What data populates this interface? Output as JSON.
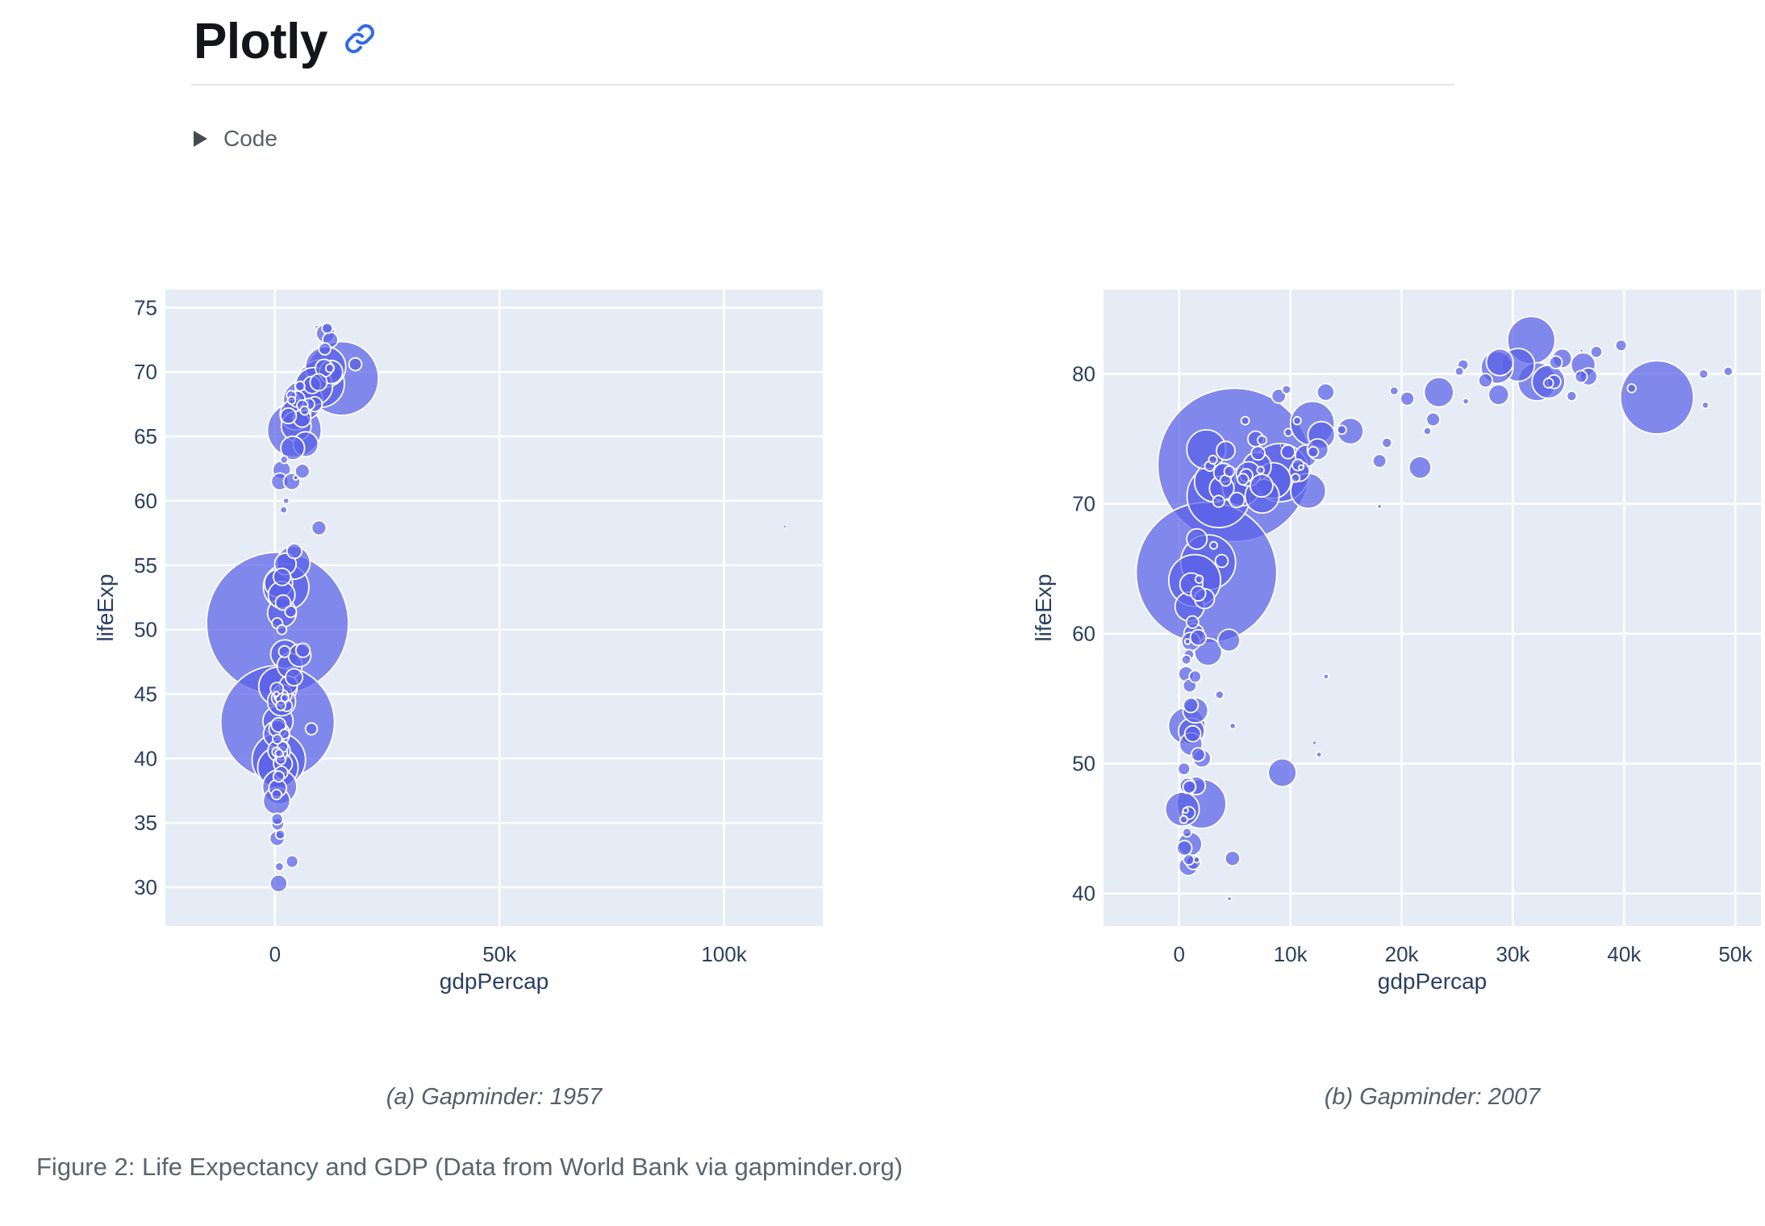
{
  "header": {
    "title": "Plotly",
    "code_label": "Code"
  },
  "figure": {
    "caption": "Figure 2: Life Expectancy and GDP (Data from World Bank via gapminder.org)",
    "subfigures": [
      {
        "caption": "(a) Gapminder: 1957"
      },
      {
        "caption": "(b) Gapminder: 2007"
      }
    ]
  },
  "colors": {
    "accent_link": "#2e6ae8",
    "plot_bg": "#E5ECF6",
    "grid": "#FFFFFF",
    "bubble_fill": "#5A61E6",
    "bubble_stroke": "#FFFFFF",
    "axis_text": "#2a3f5f",
    "title_text": "#14151b",
    "muted_text": "#59606a",
    "caption_text": "#555e68"
  },
  "chart_data": [
    {
      "type": "scatter",
      "title": "Gapminder: 1957",
      "xlabel": "gdpPercap",
      "ylabel": "lifeExp",
      "xlim": [
        -24400,
        122000
      ],
      "ylim": [
        27.0,
        76.4
      ],
      "x_ticks": [
        {
          "v": 0,
          "label": "0"
        },
        {
          "v": 50000,
          "label": "50k"
        },
        {
          "v": 100000,
          "label": "100k"
        }
      ],
      "y_ticks": [
        {
          "v": 30,
          "label": "30"
        },
        {
          "v": 35,
          "label": "35"
        },
        {
          "v": 40,
          "label": "40"
        },
        {
          "v": 45,
          "label": "45"
        },
        {
          "v": 50,
          "label": "50"
        },
        {
          "v": 55,
          "label": "55"
        },
        {
          "v": 60,
          "label": "60"
        },
        {
          "v": 65,
          "label": "65"
        },
        {
          "v": 70,
          "label": "70"
        },
        {
          "v": 75,
          "label": "75"
        }
      ],
      "grid": true,
      "legend": "none",
      "size_max_r": 88,
      "points_format": [
        "gdpPercap",
        "lifeExp",
        "pop_millions"
      ],
      "points": [
        [
          821,
          30.3,
          9.2
        ],
        [
          1942,
          59.3,
          1.5
        ],
        [
          3014,
          45.7,
          10.3
        ],
        [
          3828,
          32.0,
          4.6
        ],
        [
          6857,
          64.4,
          19.6
        ],
        [
          10950,
          70.3,
          9.7
        ],
        [
          8843,
          67.5,
          7.0
        ],
        [
          662,
          39.3,
          51.4
        ],
        [
          9715,
          69.2,
          9.0
        ],
        [
          960,
          40.4,
          1.9
        ],
        [
          2128,
          41.9,
          3.0
        ],
        [
          2487,
          53.3,
          65.5
        ],
        [
          3009,
          66.6,
          7.7
        ],
        [
          617,
          34.9,
          4.7
        ],
        [
          380,
          40.5,
          2.7
        ],
        [
          434,
          45.4,
          5.3
        ],
        [
          1313,
          40.4,
          5.4
        ],
        [
          12490,
          70.0,
          17.0
        ],
        [
          1308,
          39.9,
          2.9
        ],
        [
          4316,
          56.1,
          7.0
        ],
        [
          576,
          50.5,
          637.4
        ],
        [
          2324,
          55.1,
          14.5
        ],
        [
          906,
          40.6,
          15.6
        ],
        [
          2487,
          60.0,
          1.1
        ],
        [
          6093,
          62.3,
          6.6
        ],
        [
          8256,
          69.0,
          9.5
        ],
        [
          11100,
          71.8,
          4.5
        ],
        [
          1544,
          50.0,
          2.9
        ],
        [
          3522,
          51.4,
          4.1
        ],
        [
          1459,
          44.4,
          25.0
        ],
        [
          379,
          36.7,
          22.8
        ],
        [
          7545,
          67.5,
          4.3
        ],
        [
          8663,
          68.9,
          44.3
        ],
        [
          10188,
          69.1,
          71.0
        ],
        [
          1490,
          44.8,
          6.4
        ],
        [
          4916,
          67.9,
          8.1
        ],
        [
          2617,
          44.1,
          4.0
        ],
        [
          1726,
          40.9,
          3.5
        ],
        [
          2220,
          44.7,
          1.8
        ],
        [
          3629,
          68.2,
          2.7
        ],
        [
          6040,
          66.4,
          9.8
        ],
        [
          9244,
          73.5,
          0.17
        ],
        [
          590,
          42.8,
          409.0
        ],
        [
          859,
          39.9,
          90.1
        ],
        [
          3290,
          47.2,
          19.8
        ],
        [
          6229,
          48.4,
          6.3
        ],
        [
          5599,
          68.9,
          2.9
        ],
        [
          3698,
          67.8,
          1.9
        ],
        [
          6249,
          67.8,
          49.2
        ],
        [
          4318,
          65.5,
          91.6
        ],
        [
          944,
          44.7,
          7.4
        ],
        [
          1572,
          54.1,
          9.4
        ],
        [
          1488,
          52.7,
          22.6
        ],
        [
          113523,
          58.0,
          0.21
        ],
        [
          344,
          45.0,
          0.8
        ],
        [
          1443,
          38.9,
          5.2
        ],
        [
          380,
          37.2,
          3.2
        ],
        [
          1810,
          52.1,
          7.3
        ],
        [
          490,
          35.3,
          4.2
        ],
        [
          4132,
          55.2,
          35.0
        ],
        [
          1695,
          45.0,
          11.4
        ],
        [
          495,
          33.8,
          7.0
        ],
        [
          350,
          41.9,
          21.7
        ],
        [
          598,
          37.7,
          9.7
        ],
        [
          11277,
          73.0,
          11.0
        ],
        [
          12247,
          70.3,
          2.2
        ],
        [
          826,
          38.6,
          3.7
        ],
        [
          1056,
          37.8,
          37.2
        ],
        [
          11654,
          73.4,
          3.5
        ],
        [
          685,
          45.6,
          46.7
        ],
        [
          2047,
          63.2,
          1.8
        ],
        [
          4245,
          46.3,
          9.2
        ],
        [
          1548,
          51.3,
          26.1
        ],
        [
          4734,
          65.8,
          28.2
        ],
        [
          3774,
          61.5,
          8.8
        ],
        [
          3943,
          64.1,
          17.8
        ],
        [
          534,
          41.5,
          2.8
        ],
        [
          1004,
          31.6,
          2.3
        ],
        [
          6093,
          67.4,
          3.8
        ],
        [
          1184,
          34.1,
          2.8
        ],
        [
          5487,
          48.0,
          16.2
        ],
        [
          4564,
          66.7,
          29.8
        ],
        [
          1072,
          61.5,
          9.1
        ],
        [
          1770,
          39.6,
          11.2
        ],
        [
          12329,
          72.5,
          7.4
        ],
        [
          17909,
          70.6,
          5.1
        ],
        [
          2117,
          48.3,
          4.2
        ],
        [
          1507,
          62.4,
          10.2
        ],
        [
          590,
          42.3,
          9.5
        ],
        [
          794,
          53.6,
          25.0
        ],
        [
          4622,
          61.8,
          0.7
        ],
        [
          1468,
          44.6,
          4.0
        ],
        [
          2219,
          48.1,
          25.7
        ],
        [
          810,
          42.6,
          6.7
        ],
        [
          11283,
          70.4,
          51.4
        ],
        [
          14847,
          69.5,
          172.0
        ],
        [
          6597,
          67.0,
          2.4
        ],
        [
          9802,
          57.9,
          6.7
        ],
        [
          676,
          42.9,
          28.8
        ],
        [
          1311,
          44.1,
          3.0
        ],
        [
          518,
          50.5,
          3.6
        ],
        [
          8119,
          42.3,
          4.4
        ]
      ]
    },
    {
      "type": "scatter",
      "title": "Gapminder: 2007",
      "xlabel": "gdpPercap",
      "ylabel": "lifeExp",
      "xlim": [
        -6800,
        52300
      ],
      "ylim": [
        37.5,
        86.5
      ],
      "x_ticks": [
        {
          "v": 0,
          "label": "0"
        },
        {
          "v": 10000,
          "label": "10k"
        },
        {
          "v": 20000,
          "label": "20k"
        },
        {
          "v": 30000,
          "label": "30k"
        },
        {
          "v": 40000,
          "label": "40k"
        },
        {
          "v": 50000,
          "label": "50k"
        }
      ],
      "y_ticks": [
        {
          "v": 40,
          "label": "40"
        },
        {
          "v": 50,
          "label": "50"
        },
        {
          "v": 60,
          "label": "60"
        },
        {
          "v": 70,
          "label": "70"
        },
        {
          "v": 80,
          "label": "80"
        }
      ],
      "grid": true,
      "legend": "none",
      "size_max_r": 95,
      "points_format": [
        "gdpPercap",
        "lifeExp",
        "pop_millions"
      ],
      "points": [
        [
          975,
          43.8,
          31.9
        ],
        [
          5937,
          76.4,
          3.6
        ],
        [
          6223,
          72.3,
          33.3
        ],
        [
          4797,
          42.7,
          12.4
        ],
        [
          12779,
          75.3,
          40.3
        ],
        [
          34435,
          81.2,
          20.4
        ],
        [
          36126,
          79.8,
          8.2
        ],
        [
          1391,
          64.1,
          150.4
        ],
        [
          33693,
          79.4,
          10.4
        ],
        [
          1441,
          56.7,
          8.1
        ],
        [
          3822,
          65.6,
          9.1
        ],
        [
          7446,
          74.9,
          4.6
        ],
        [
          12570,
          50.7,
          1.6
        ],
        [
          9066,
          72.4,
          190.0
        ],
        [
          10681,
          73.0,
          7.3
        ],
        [
          1217,
          52.3,
          14.3
        ],
        [
          430,
          49.6,
          8.4
        ],
        [
          1714,
          59.7,
          14.1
        ],
        [
          2042,
          50.4,
          17.7
        ],
        [
          36319,
          80.7,
          33.4
        ],
        [
          706,
          44.7,
          4.4
        ],
        [
          1704,
          50.7,
          10.2
        ],
        [
          13172,
          78.6,
          16.3
        ],
        [
          4959,
          73.0,
          1318.7
        ],
        [
          7007,
          72.9,
          44.2
        ],
        [
          277,
          46.5,
          64.6
        ],
        [
          3633,
          55.3,
          3.8
        ],
        [
          9645,
          78.8,
          4.1
        ],
        [
          1545,
          48.3,
          18.0
        ],
        [
          14619,
          75.7,
          4.5
        ],
        [
          8948,
          78.3,
          11.4
        ],
        [
          22833,
          76.5,
          10.2
        ],
        [
          35278,
          78.3,
          5.5
        ],
        [
          6025,
          72.2,
          9.4
        ],
        [
          6873,
          75.0,
          13.8
        ],
        [
          5581,
          71.3,
          80.3
        ],
        [
          5728,
          71.9,
          6.9
        ],
        [
          12154,
          51.6,
          0.6
        ],
        [
          641,
          58.0,
          4.9
        ],
        [
          691,
          52.9,
          76.5
        ],
        [
          33207,
          79.3,
          5.2
        ],
        [
          30470,
          80.7,
          61.1
        ],
        [
          13206,
          56.7,
          1.5
        ],
        [
          752,
          59.4,
          1.7
        ],
        [
          32170,
          79.4,
          82.4
        ],
        [
          1328,
          60.0,
          22.9
        ],
        [
          27538,
          79.5,
          10.7
        ],
        [
          5186,
          70.3,
          12.6
        ],
        [
          942,
          56.0,
          9.9
        ],
        [
          579,
          46.4,
          1.5
        ],
        [
          1202,
          60.9,
          8.5
        ],
        [
          3548,
          70.2,
          7.5
        ],
        [
          39725,
          82.2,
          7.0
        ],
        [
          18009,
          73.3,
          10.0
        ],
        [
          36181,
          81.8,
          0.3
        ],
        [
          2452,
          64.7,
          1110.4
        ],
        [
          3541,
          70.6,
          223.5
        ],
        [
          11606,
          71.0,
          69.5
        ],
        [
          4471,
          59.5,
          27.5
        ],
        [
          40676,
          78.9,
          4.1
        ],
        [
          25523,
          80.7,
          6.4
        ],
        [
          28570,
          80.5,
          58.1
        ],
        [
          7321,
          72.6,
          2.8
        ],
        [
          31656,
          82.6,
          127.5
        ],
        [
          4519,
          72.5,
          6.1
        ],
        [
          1463,
          54.1,
          35.6
        ],
        [
          1593,
          67.3,
          23.3
        ],
        [
          23348,
          78.6,
          49.0
        ],
        [
          47307,
          77.6,
          2.5
        ],
        [
          10461,
          72.0,
          3.9
        ],
        [
          1569,
          42.6,
          2.0
        ],
        [
          415,
          45.7,
          3.2
        ],
        [
          12057,
          74.0,
          6.0
        ],
        [
          1045,
          59.4,
          19.2
        ],
        [
          759,
          48.3,
          13.3
        ],
        [
          12452,
          74.2,
          24.8
        ],
        [
          1043,
          54.5,
          12.0
        ],
        [
          1803,
          64.2,
          3.3
        ],
        [
          10957,
          72.8,
          1.3
        ],
        [
          11978,
          76.2,
          108.7
        ],
        [
          3096,
          66.8,
          2.9
        ],
        [
          9254,
          74.5,
          0.7
        ],
        [
          3820,
          71.2,
          33.8
        ],
        [
          824,
          42.1,
          20.0
        ],
        [
          944,
          62.1,
          47.8
        ],
        [
          4811,
          52.9,
          2.1
        ],
        [
          1091,
          63.8,
          28.9
        ],
        [
          36798,
          79.8,
          16.6
        ],
        [
          25185,
          80.2,
          4.1
        ],
        [
          2749,
          72.9,
          5.7
        ],
        [
          619,
          56.9,
          12.9
        ],
        [
          2014,
          46.9,
          135.0
        ],
        [
          49357,
          80.2,
          4.6
        ],
        [
          22316,
          75.6,
          3.2
        ],
        [
          2606,
          65.5,
          169.3
        ],
        [
          9809,
          75.5,
          3.2
        ],
        [
          4173,
          71.8,
          6.7
        ],
        [
          7409,
          71.4,
          28.7
        ],
        [
          3190,
          71.7,
          91.1
        ],
        [
          15390,
          75.6,
          38.5
        ],
        [
          20510,
          78.1,
          10.6
        ],
        [
          19329,
          78.7,
          4.0
        ],
        [
          10808,
          72.5,
          22.3
        ],
        [
          863,
          46.2,
          8.9
        ],
        [
          21655,
          72.8,
          27.6
        ],
        [
          1712,
          63.1,
          12.3
        ],
        [
          9787,
          74.0,
          10.2
        ],
        [
          863,
          42.6,
          6.1
        ],
        [
          47143,
          80.0,
          4.6
        ],
        [
          18678,
          74.7,
          5.4
        ],
        [
          25768,
          77.9,
          2.0
        ],
        [
          926,
          48.2,
          9.1
        ],
        [
          9270,
          49.3,
          44.0
        ],
        [
          28821,
          80.9,
          40.4
        ],
        [
          3970,
          72.4,
          20.4
        ],
        [
          2602,
          58.6,
          42.3
        ],
        [
          4513,
          39.6,
          1.1
        ],
        [
          33860,
          80.9,
          9.0
        ],
        [
          37506,
          81.7,
          7.5
        ],
        [
          4184,
          74.1,
          19.3
        ],
        [
          28718,
          78.4,
          23.2
        ],
        [
          1107,
          52.5,
          38.1
        ],
        [
          7458,
          70.6,
          65.1
        ],
        [
          883,
          58.4,
          5.7
        ],
        [
          18009,
          69.8,
          1.1
        ],
        [
          7093,
          73.9,
          10.3
        ],
        [
          8458,
          71.8,
          71.2
        ],
        [
          1056,
          51.5,
          29.2
        ],
        [
          33203,
          79.4,
          60.8
        ],
        [
          42952,
          78.2,
          301.1
        ],
        [
          10611,
          76.4,
          3.4
        ],
        [
          11415,
          73.7,
          26.1
        ],
        [
          2442,
          74.2,
          85.3
        ],
        [
          3025,
          73.4,
          4.0
        ],
        [
          2281,
          62.7,
          22.2
        ],
        [
          1271,
          42.4,
          11.7
        ],
        [
          470,
          43.5,
          12.3
        ]
      ]
    }
  ]
}
